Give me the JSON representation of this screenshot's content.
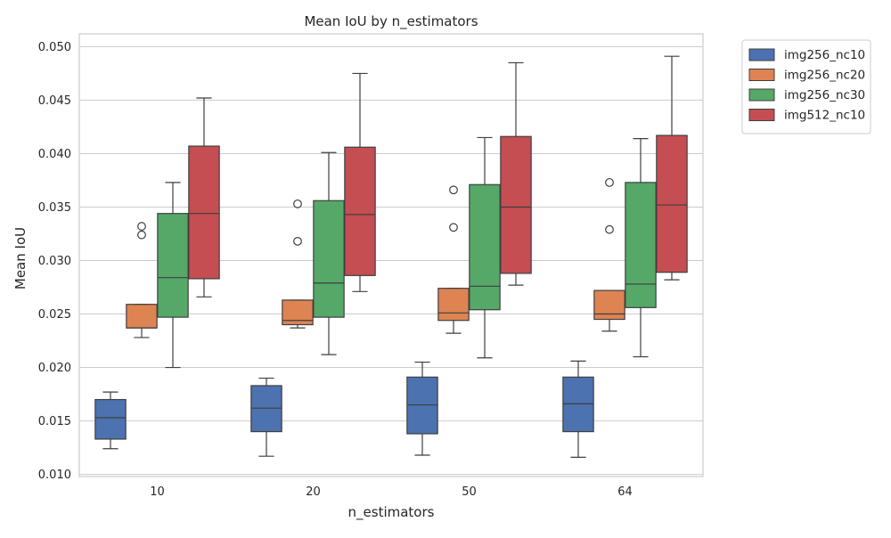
{
  "chart_data": {
    "type": "box",
    "title": "Mean IoU by n_estimators",
    "xlabel": "n_estimators",
    "ylabel": "Mean IoU",
    "categories": [
      "10",
      "20",
      "50",
      "64"
    ],
    "ylim": [
      0.0098,
      0.0512
    ],
    "yticks": [
      "0.010",
      "0.015",
      "0.020",
      "0.025",
      "0.030",
      "0.035",
      "0.040",
      "0.045",
      "0.050"
    ],
    "grid": true,
    "legend": "outside-top-right",
    "series": [
      {
        "name": "img256_nc10",
        "color": "#4c72b0",
        "boxes": [
          {
            "whislo": 0.0124,
            "q1": 0.0133,
            "med": 0.0153,
            "q3": 0.017,
            "whishi": 0.0177,
            "fliers": []
          },
          {
            "whislo": 0.0117,
            "q1": 0.014,
            "med": 0.0162,
            "q3": 0.0183,
            "whishi": 0.019,
            "fliers": []
          },
          {
            "whislo": 0.0118,
            "q1": 0.0138,
            "med": 0.0165,
            "q3": 0.0191,
            "whishi": 0.0205,
            "fliers": []
          },
          {
            "whislo": 0.0116,
            "q1": 0.014,
            "med": 0.0166,
            "q3": 0.0191,
            "whishi": 0.0206,
            "fliers": []
          }
        ]
      },
      {
        "name": "img256_nc20",
        "color": "#dd8452",
        "boxes": [
          {
            "whislo": 0.0228,
            "q1": 0.0237,
            "med": 0.0237,
            "q3": 0.0259,
            "whishi": 0.0259,
            "fliers": [
              0.0324,
              0.0332
            ]
          },
          {
            "whislo": 0.0237,
            "q1": 0.024,
            "med": 0.0244,
            "q3": 0.0263,
            "whishi": 0.0263,
            "fliers": [
              0.0318,
              0.0353
            ]
          },
          {
            "whislo": 0.0232,
            "q1": 0.0244,
            "med": 0.0251,
            "q3": 0.0274,
            "whishi": 0.0274,
            "fliers": [
              0.0331,
              0.0366
            ]
          },
          {
            "whislo": 0.0234,
            "q1": 0.0245,
            "med": 0.025,
            "q3": 0.0272,
            "whishi": 0.0272,
            "fliers": [
              0.0329,
              0.0373
            ]
          }
        ]
      },
      {
        "name": "img256_nc30",
        "color": "#55a868",
        "boxes": [
          {
            "whislo": 0.02,
            "q1": 0.0247,
            "med": 0.0284,
            "q3": 0.0344,
            "whishi": 0.0373,
            "fliers": []
          },
          {
            "whislo": 0.0212,
            "q1": 0.0247,
            "med": 0.0279,
            "q3": 0.0356,
            "whishi": 0.0401,
            "fliers": []
          },
          {
            "whislo": 0.0209,
            "q1": 0.0254,
            "med": 0.0276,
            "q3": 0.0371,
            "whishi": 0.0415,
            "fliers": []
          },
          {
            "whislo": 0.021,
            "q1": 0.0256,
            "med": 0.0278,
            "q3": 0.0373,
            "whishi": 0.0414,
            "fliers": []
          }
        ]
      },
      {
        "name": "img512_nc10",
        "color": "#c44e52",
        "boxes": [
          {
            "whislo": 0.0266,
            "q1": 0.0283,
            "med": 0.0344,
            "q3": 0.0407,
            "whishi": 0.0452,
            "fliers": []
          },
          {
            "whislo": 0.0271,
            "q1": 0.0286,
            "med": 0.0343,
            "q3": 0.0406,
            "whishi": 0.0475,
            "fliers": []
          },
          {
            "whislo": 0.0277,
            "q1": 0.0288,
            "med": 0.035,
            "q3": 0.0416,
            "whishi": 0.0485,
            "fliers": []
          },
          {
            "whislo": 0.0282,
            "q1": 0.0289,
            "med": 0.0352,
            "q3": 0.0417,
            "whishi": 0.0491,
            "fliers": []
          }
        ]
      }
    ]
  }
}
